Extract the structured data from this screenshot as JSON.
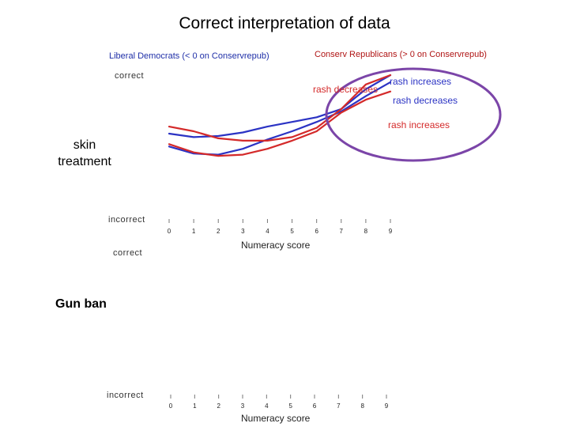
{
  "title": "Correct interpretation of data",
  "legend": {
    "liberal": "Liberal Democrats (< 0 on Conservrepub)",
    "conservative": "Conserv Republicans (> 0 on Conservrepub)"
  },
  "panels": {
    "skin": "skin treatment",
    "gun": "Gun ban"
  },
  "colors": {
    "liberal": "#2b33c4",
    "conservative": "#d42a2a",
    "highlight": "#7b45a8"
  },
  "chart_data": [
    {
      "type": "line",
      "panel": "skin treatment",
      "xlabel": "Numeracy score",
      "y_top_label": "correct",
      "y_bottom_label": "incorrect",
      "x_ticks": [
        0,
        1,
        2,
        3,
        4,
        5,
        6,
        7,
        8,
        9
      ],
      "xlim": [
        0,
        9
      ],
      "ylim": [
        0,
        1
      ],
      "series": [
        {
          "group": "liberal",
          "condition": "rash increases",
          "x": [
            0,
            1,
            2,
            3,
            4,
            5,
            6,
            7,
            8,
            9
          ],
          "y": [
            0.5,
            0.47,
            0.48,
            0.51,
            0.56,
            0.6,
            0.64,
            0.71,
            0.88,
            1.0
          ]
        },
        {
          "group": "liberal",
          "condition": "rash decreases",
          "x": [
            0,
            1,
            2,
            3,
            4,
            5,
            6,
            7,
            8,
            9
          ],
          "y": [
            0.39,
            0.33,
            0.32,
            0.37,
            0.45,
            0.52,
            0.6,
            0.69,
            0.82,
            0.94
          ]
        },
        {
          "group": "conservative",
          "condition": "rash decreases",
          "x": [
            0,
            1,
            2,
            3,
            4,
            5,
            6,
            7,
            8,
            9
          ],
          "y": [
            0.56,
            0.52,
            0.46,
            0.44,
            0.44,
            0.47,
            0.55,
            0.71,
            0.92,
            1.0
          ]
        },
        {
          "group": "conservative",
          "condition": "rash increases",
          "x": [
            0,
            1,
            2,
            3,
            4,
            5,
            6,
            7,
            8,
            9
          ],
          "y": [
            0.41,
            0.34,
            0.31,
            0.32,
            0.37,
            0.44,
            0.52,
            0.68,
            0.79,
            0.86
          ]
        }
      ],
      "annotations": [
        {
          "text": "rash increases",
          "color": "#2b33c4"
        },
        {
          "text": "rash decreases",
          "color": "#2b33c4"
        },
        {
          "text": "rash decreases",
          "color": "#d42a2a"
        },
        {
          "text": "rash increases",
          "color": "#d42a2a"
        }
      ]
    },
    {
      "type": "line",
      "panel": "Gun ban",
      "xlabel": "Numeracy score",
      "y_top_label": "correct",
      "y_bottom_label": "incorrect",
      "x_ticks": [
        0,
        1,
        2,
        3,
        4,
        5,
        6,
        7,
        8,
        9
      ],
      "xlim": [
        0,
        9
      ],
      "ylim": [
        0,
        1
      ],
      "series": []
    }
  ]
}
